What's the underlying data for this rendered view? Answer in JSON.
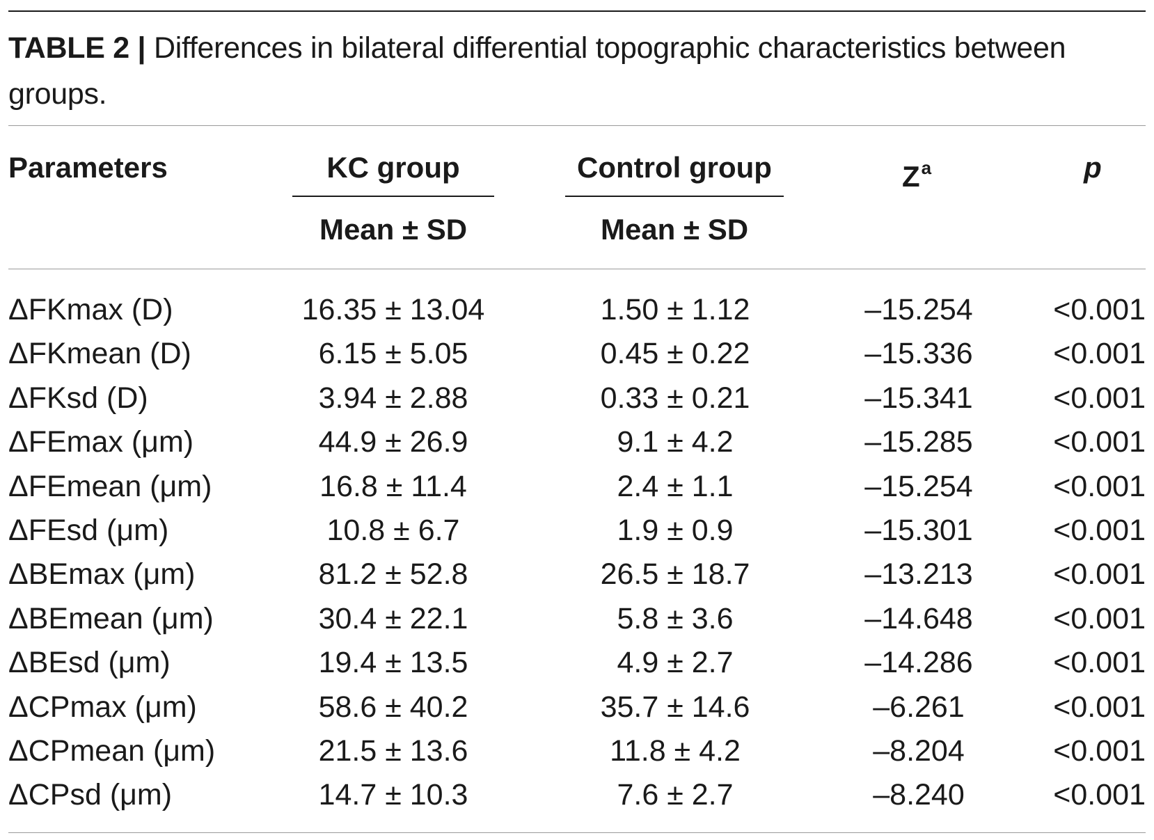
{
  "caption": {
    "label": "TABLE 2",
    "separator": "|",
    "text": "Differences in bilateral differential topographic characteristics between groups."
  },
  "header": {
    "parameters": "Parameters",
    "kc_group": "KC group",
    "control_group": "Control group",
    "z": "Z",
    "z_superscript": "a",
    "p": "p",
    "kc_sub": "Mean ± SD",
    "control_sub": "Mean ± SD"
  },
  "rows": [
    {
      "param": "ΔFKmax (D)",
      "kc": "16.35 ± 13.04",
      "control": "1.50 ± 1.12",
      "z": "–15.254",
      "p": "<0.001"
    },
    {
      "param": "ΔFKmean (D)",
      "kc": "6.15 ± 5.05",
      "control": "0.45 ± 0.22",
      "z": "–15.336",
      "p": "<0.001"
    },
    {
      "param": "ΔFKsd (D)",
      "kc": "3.94 ± 2.88",
      "control": "0.33 ± 0.21",
      "z": "–15.341",
      "p": "<0.001"
    },
    {
      "param": "ΔFEmax (μm)",
      "kc": "44.9 ± 26.9",
      "control": "9.1 ± 4.2",
      "z": "–15.285",
      "p": "<0.001"
    },
    {
      "param": "ΔFEmean (μm)",
      "kc": "16.8 ± 11.4",
      "control": "2.4 ± 1.1",
      "z": "–15.254",
      "p": "<0.001"
    },
    {
      "param": "ΔFEsd (μm)",
      "kc": "10.8 ± 6.7",
      "control": "1.9 ± 0.9",
      "z": "–15.301",
      "p": "<0.001"
    },
    {
      "param": "ΔBEmax (μm)",
      "kc": "81.2 ± 52.8",
      "control": "26.5 ± 18.7",
      "z": "–13.213",
      "p": "<0.001"
    },
    {
      "param": "ΔBEmean (μm)",
      "kc": "30.4 ± 22.1",
      "control": "5.8 ± 3.6",
      "z": "–14.648",
      "p": "<0.001"
    },
    {
      "param": "ΔBEsd (μm)",
      "kc": "19.4 ± 13.5",
      "control": "4.9 ± 2.7",
      "z": "–14.286",
      "p": "<0.001"
    },
    {
      "param": "ΔCPmax (μm)",
      "kc": "58.6 ± 40.2",
      "control": "35.7 ± 14.6",
      "z": "–6.261",
      "p": "<0.001"
    },
    {
      "param": "ΔCPmean (μm)",
      "kc": "21.5 ± 13.6",
      "control": "11.8 ± 4.2",
      "z": "–8.204",
      "p": "<0.001"
    },
    {
      "param": "ΔCPsd (μm)",
      "kc": "14.7 ± 10.3",
      "control": "7.6 ± 2.7",
      "z": "–8.240",
      "p": "<0.001"
    }
  ]
}
